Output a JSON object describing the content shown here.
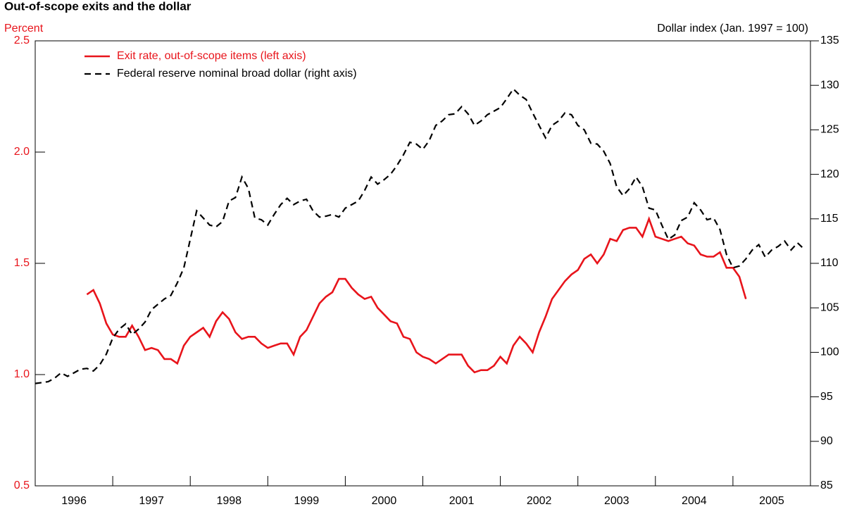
{
  "chart_data": {
    "type": "line",
    "title": "Out-of-scope exits and the dollar",
    "ylabel": "Percent",
    "y2label": "Dollar index (Jan. 1997 = 100)",
    "xlim": [
      1996,
      2006
    ],
    "xticks": [
      {
        "value": 1996.5,
        "label": "1996"
      },
      {
        "value": 1997.5,
        "label": "1997"
      },
      {
        "value": 1998.5,
        "label": "1998"
      },
      {
        "value": 1999.5,
        "label": "1999"
      },
      {
        "value": 2000.5,
        "label": "2000"
      },
      {
        "value": 2001.5,
        "label": "2001"
      },
      {
        "value": 2002.5,
        "label": "2002"
      },
      {
        "value": 2003.5,
        "label": "2003"
      },
      {
        "value": 2004.5,
        "label": "2004"
      },
      {
        "value": 2005.5,
        "label": "2005"
      }
    ],
    "xminorticks": [
      1997,
      1998,
      1999,
      2000,
      2001,
      2002,
      2003,
      2004,
      2005
    ],
    "ylim": [
      0.5,
      2.5
    ],
    "yticks": [
      0.5,
      {
        "value": 1,
        "label": "1.0"
      },
      1.5,
      {
        "value": 2,
        "label": "2.0"
      },
      2.5
    ],
    "y2lim": [
      85,
      135
    ],
    "y2ticks": [
      85,
      90,
      95,
      100,
      105,
      110,
      115,
      120,
      125,
      130,
      135
    ],
    "legend": "upper left",
    "x": [
      1996,
      1996.083,
      1996.167,
      1996.25,
      1996.333,
      1996.417,
      1996.5,
      1996.583,
      1996.667,
      1996.75,
      1996.833,
      1996.917,
      1997,
      1997.083,
      1997.167,
      1997.25,
      1997.333,
      1997.417,
      1997.5,
      1997.583,
      1997.667,
      1997.75,
      1997.833,
      1997.917,
      1998,
      1998.083,
      1998.167,
      1998.25,
      1998.333,
      1998.417,
      1998.5,
      1998.583,
      1998.667,
      1998.75,
      1998.833,
      1998.917,
      1999,
      1999.083,
      1999.167,
      1999.25,
      1999.333,
      1999.417,
      1999.5,
      1999.583,
      1999.667,
      1999.75,
      1999.833,
      1999.917,
      2000,
      2000.083,
      2000.167,
      2000.25,
      2000.333,
      2000.417,
      2000.5,
      2000.583,
      2000.667,
      2000.75,
      2000.833,
      2000.917,
      2001,
      2001.083,
      2001.167,
      2001.25,
      2001.333,
      2001.417,
      2001.5,
      2001.583,
      2001.667,
      2001.75,
      2001.833,
      2001.917,
      2002,
      2002.083,
      2002.167,
      2002.25,
      2002.333,
      2002.417,
      2002.5,
      2002.583,
      2002.667,
      2002.75,
      2002.833,
      2002.917,
      2003,
      2003.083,
      2003.167,
      2003.25,
      2003.333,
      2003.417,
      2003.5,
      2003.583,
      2003.667,
      2003.75,
      2003.833,
      2003.917,
      2004,
      2004.083,
      2004.167,
      2004.25,
      2004.333,
      2004.417,
      2004.5,
      2004.583,
      2004.667,
      2004.75,
      2004.833,
      2004.917,
      2005,
      2005.083,
      2005.167,
      2005.25,
      2005.333,
      2005.417,
      2005.5,
      2005.583,
      2005.667,
      2005.75,
      2005.833,
      2005.917
    ],
    "series": [
      {
        "name": "Exit rate, out-of-scope items (left axis)",
        "color": "#e8141b",
        "dashed": false,
        "axis": "y",
        "values": [
          null,
          null,
          null,
          null,
          null,
          null,
          null,
          null,
          1.36,
          1.38,
          1.32,
          1.23,
          1.18,
          1.17,
          1.17,
          1.22,
          1.17,
          1.11,
          1.12,
          1.11,
          1.07,
          1.07,
          1.05,
          1.13,
          1.17,
          1.19,
          1.21,
          1.17,
          1.24,
          1.28,
          1.25,
          1.19,
          1.16,
          1.17,
          1.17,
          1.14,
          1.12,
          1.13,
          1.14,
          1.14,
          1.09,
          1.17,
          1.2,
          1.26,
          1.32,
          1.35,
          1.37,
          1.43,
          1.43,
          1.39,
          1.36,
          1.34,
          1.35,
          1.3,
          1.27,
          1.24,
          1.23,
          1.17,
          1.16,
          1.1,
          1.08,
          1.07,
          1.05,
          1.07,
          1.09,
          1.09,
          1.09,
          1.04,
          1.01,
          1.02,
          1.02,
          1.04,
          1.08,
          1.05,
          1.13,
          1.17,
          1.14,
          1.1,
          1.19,
          1.26,
          1.34,
          1.38,
          1.42,
          1.45,
          1.47,
          1.52,
          1.54,
          1.5,
          1.54,
          1.61,
          1.6,
          1.65,
          1.66,
          1.66,
          1.62,
          1.7,
          1.62,
          1.61,
          1.6,
          1.61,
          1.62,
          1.59,
          1.58,
          1.54,
          1.53,
          1.53,
          1.55,
          1.48,
          1.48,
          1.44,
          1.34,
          null,
          null,
          null,
          null,
          null,
          null,
          null,
          null,
          null
        ]
      },
      {
        "name": "Federal reserve nominal broad dollar (right axis)",
        "color": "#000000",
        "dashed": true,
        "axis": "y2",
        "values": [
          96.5,
          96.6,
          96.7,
          97.1,
          97.7,
          97.3,
          97.7,
          98.1,
          98.2,
          97.9,
          98.6,
          99.8,
          101.6,
          102.6,
          103.2,
          102.0,
          102.6,
          103.4,
          104.8,
          105.4,
          106.0,
          106.4,
          107.8,
          109.5,
          112.7,
          115.9,
          115.1,
          114.3,
          114.1,
          114.7,
          117.0,
          117.4,
          119.7,
          118.4,
          115.1,
          114.9,
          114.3,
          115.5,
          116.6,
          117.3,
          116.6,
          117.0,
          117.2,
          115.9,
          115.2,
          115.3,
          115.5,
          115.2,
          116.2,
          116.6,
          117.0,
          118.2,
          119.7,
          118.9,
          119.4,
          120.0,
          121.0,
          122.2,
          123.6,
          123.4,
          122.8,
          123.8,
          125.5,
          126.0,
          126.7,
          126.8,
          127.6,
          126.8,
          125.5,
          126.0,
          126.7,
          127.1,
          127.5,
          128.5,
          129.6,
          128.9,
          128.4,
          126.9,
          125.5,
          124.1,
          125.5,
          126.0,
          126.9,
          126.7,
          125.5,
          125.0,
          123.5,
          123.4,
          122.6,
          121.2,
          118.6,
          117.6,
          118.4,
          119.7,
          118.6,
          116.2,
          116.0,
          114.3,
          112.7,
          113.2,
          114.8,
          115.2,
          116.8,
          116.0,
          114.9,
          115.1,
          113.8,
          111.0,
          109.5,
          109.7,
          110.5,
          111.5,
          112.1,
          110.7,
          111.5,
          111.9,
          112.5,
          111.5,
          112.3,
          111.6
        ]
      }
    ]
  }
}
